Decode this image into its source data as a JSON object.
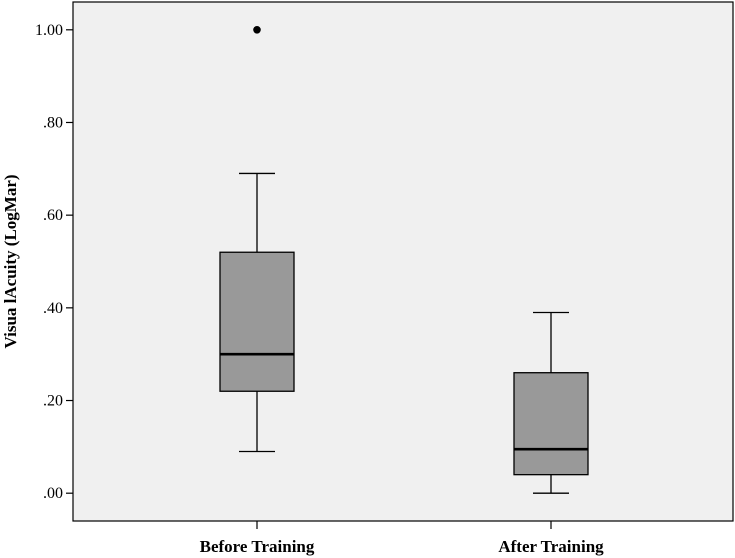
{
  "chart_data": {
    "type": "box",
    "title": "",
    "xlabel": "",
    "ylabel": "Visua lAcuity (LogMar)",
    "ylim": [
      -0.06,
      1.06
    ],
    "yticks": [
      0.0,
      0.2,
      0.4,
      0.6,
      0.8,
      1.0
    ],
    "ytick_labels": [
      ".00",
      ".20",
      ".40",
      ".60",
      ".80",
      "1.00"
    ],
    "categories": [
      "Before Training",
      "After Training"
    ],
    "boxes": [
      {
        "category": "Before Training",
        "whisker_low": 0.09,
        "q1": 0.22,
        "median": 0.3,
        "q3": 0.52,
        "whisker_high": 0.69,
        "outliers": [
          1.0
        ]
      },
      {
        "category": "After Training",
        "whisker_low": 0.0,
        "q1": 0.04,
        "median": 0.095,
        "q3": 0.26,
        "whisker_high": 0.39,
        "outliers": []
      }
    ],
    "grid": false,
    "colors": {
      "plot_background": "#f0f0f0",
      "box_fill": "#999999",
      "line": "#000000"
    }
  }
}
